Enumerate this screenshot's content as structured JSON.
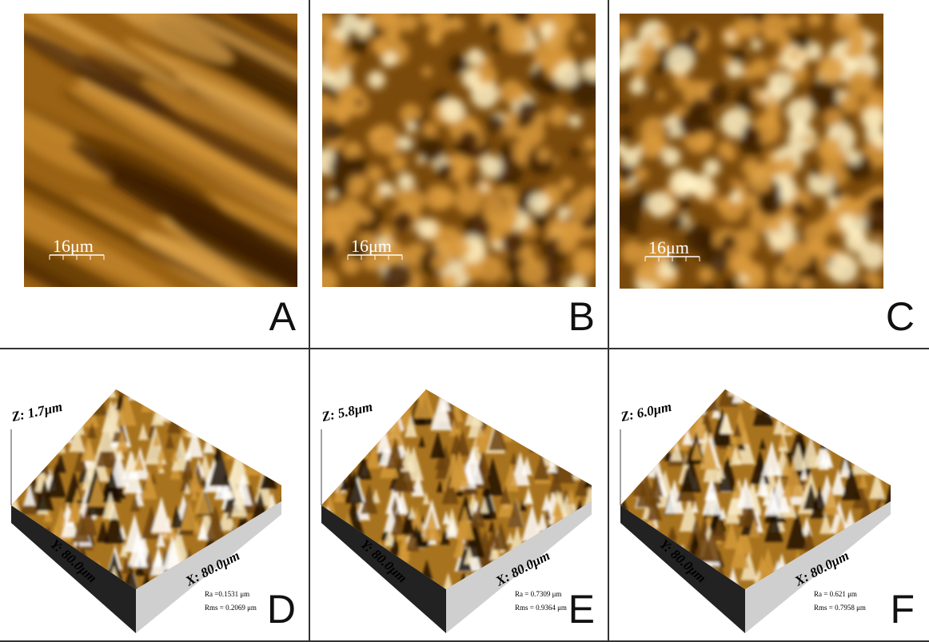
{
  "panels": [
    {
      "label": "A",
      "scale_bar": "16μm"
    },
    {
      "label": "B",
      "scale_bar": "16μm"
    },
    {
      "label": "C",
      "scale_bar": "16μm"
    },
    {
      "label": "D",
      "z_label": "Z: 1.7μm",
      "y_label": "Y: 80.0μm",
      "x_label": "X: 80.0μm",
      "ra": "Ra =0.1531 μm",
      "rms": "Rms = 0.2069 μm"
    },
    {
      "label": "E",
      "z_label": "Z: 5.8μm",
      "y_label": "Y: 80.0μm",
      "x_label": "X: 80.0μm",
      "ra": "Ra = 0.7309 μm",
      "rms": "Rms = 0.9364 μm"
    },
    {
      "label": "F",
      "z_label": "Z: 6.0μm",
      "y_label": "Y: 80.0μm",
      "x_label": "X: 80.0μm",
      "ra": "Ra = 0.621 μm",
      "rms": "Rms = 0.7958 μm"
    }
  ]
}
